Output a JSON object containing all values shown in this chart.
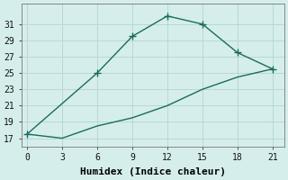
{
  "xlabel": "Humidex (Indice chaleur)",
  "bg_color": "#d5eeec",
  "grid_color": "#b8d8d5",
  "line_color": "#1a6b5e",
  "line1_x": [
    0,
    6,
    9,
    12,
    15,
    18,
    21
  ],
  "line1_y": [
    17.5,
    25,
    29.5,
    32,
    31,
    27.5,
    25.5
  ],
  "line2_x": [
    0,
    3,
    6,
    9,
    12,
    15,
    18,
    21
  ],
  "line2_y": [
    17.5,
    17,
    18.5,
    19.5,
    21,
    23,
    24.5,
    25.5
  ],
  "xlim": [
    -0.5,
    22
  ],
  "ylim": [
    16,
    33.5
  ],
  "xticks": [
    0,
    3,
    6,
    9,
    12,
    15,
    18,
    21
  ],
  "yticks": [
    17,
    19,
    21,
    23,
    25,
    27,
    29,
    31
  ],
  "markersize": 4,
  "linewidth": 1.0,
  "tick_fontsize": 7,
  "label_fontsize": 8
}
